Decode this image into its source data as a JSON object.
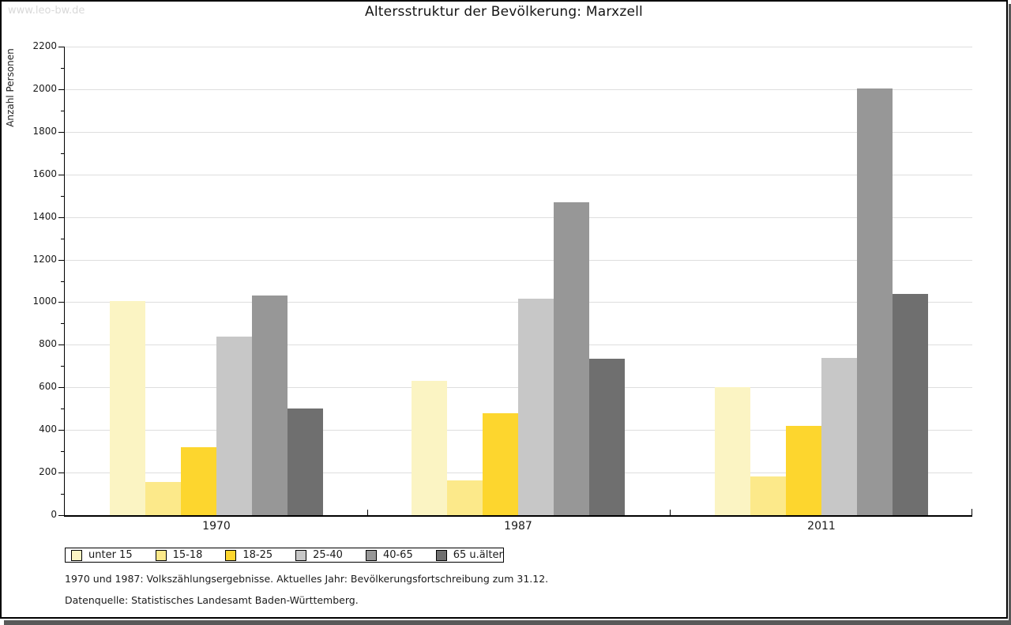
{
  "watermark": "www.leo-bw.de",
  "title": "Altersstruktur der Bevölkerung: Marxzell",
  "footer": {
    "line1": "1970 und 1987: Volkszählungsergebnisse. Aktuelles Jahr: Bevölkerungsfortschreibung zum 31.12.",
    "line2": "Datenquelle: Statistisches Landesamt Baden-Württemberg."
  },
  "chart_data": {
    "type": "bar",
    "title": "Altersstruktur der Bevölkerung: Marxzell",
    "xlabel": "",
    "ylabel": "Anzahl Personen",
    "categories": [
      "1970",
      "1987",
      "2011"
    ],
    "series": [
      {
        "name": "unter 15",
        "color": "#fbf4c3",
        "values": [
          1005,
          630,
          600
        ]
      },
      {
        "name": "15-18",
        "color": "#fce98a",
        "values": [
          155,
          165,
          180
        ]
      },
      {
        "name": "18-25",
        "color": "#fdd62e",
        "values": [
          320,
          480,
          420
        ]
      },
      {
        "name": "25-40",
        "color": "#c7c7c7",
        "values": [
          840,
          1015,
          740
        ]
      },
      {
        "name": "40-65",
        "color": "#979797",
        "values": [
          1030,
          1470,
          2005
        ]
      },
      {
        "name": "65 u.älter",
        "color": "#6f6f6f",
        "values": [
          500,
          735,
          1040
        ]
      }
    ],
    "ylim": [
      0,
      2200
    ],
    "ytick_step": 200,
    "yticks": [
      0,
      200,
      400,
      600,
      800,
      1000,
      1200,
      1400,
      1600,
      1800,
      2000,
      2200
    ],
    "grid": true,
    "legend_position": "bottom"
  },
  "colors": {
    "grid": "#dedede",
    "axis": "#000000",
    "shadow": "#595959",
    "watermark": "#d9d9d9"
  }
}
